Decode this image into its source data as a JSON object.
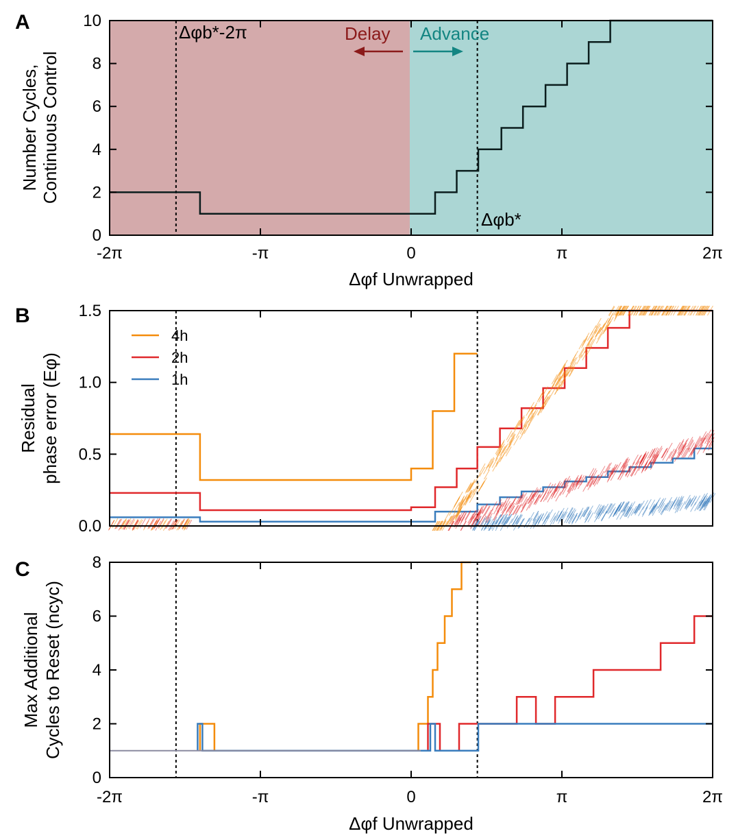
{
  "colors": {
    "delay_region": "#d4aaab",
    "advance_region": "#abd6d4",
    "delay_text": "#8b1a1a",
    "advance_text": "#138582",
    "series_4h": "#f48c0b",
    "series_2h": "#e0282b",
    "series_1h": "#3a7dbd",
    "baseline": "#8a8aa0"
  },
  "chart_data": [
    {
      "panel": "A",
      "type": "line",
      "xlabel": "Δφf Unwrapped",
      "ylabel_lines": [
        "Number Cycles,",
        "Continuous Control"
      ],
      "xlim": [
        -6.2832,
        6.2832
      ],
      "ylim": [
        0,
        10
      ],
      "xticks": [
        "-2π",
        "-π",
        "0",
        "π",
        "2π"
      ],
      "yticks": [
        "0",
        "2",
        "4",
        "6",
        "8",
        "10"
      ],
      "annotations": {
        "delay": "Delay",
        "advance": "Advance",
        "dashed_left": "Δφb*-2π",
        "dashed_right": "Δφb*"
      },
      "dashed_x": [
        -4.9,
        1.38
      ],
      "series": [
        {
          "x": [
            -6.2832,
            -4.4,
            -4.4,
            0.5,
            0.5,
            0.95,
            0.95,
            1.4,
            1.4,
            1.88,
            1.88,
            2.33,
            2.33,
            2.8,
            2.8,
            3.25,
            3.25,
            3.7,
            3.7,
            4.15,
            4.15,
            6.2832
          ],
          "y": [
            2,
            2,
            1,
            1,
            2,
            2,
            3,
            3,
            4,
            4,
            5,
            5,
            6,
            6,
            7,
            7,
            8,
            8,
            9,
            9,
            10,
            10
          ]
        }
      ]
    },
    {
      "panel": "B",
      "type": "line",
      "ylabel_lines": [
        "Residual",
        "phase error (Eφ)"
      ],
      "xlim": [
        -6.2832,
        6.2832
      ],
      "ylim": [
        0,
        1.5
      ],
      "yticks": [
        "0.0",
        "0.5",
        "1.0",
        "1.5"
      ],
      "legend": [
        "4h",
        "2h",
        "1h"
      ],
      "dashed_x": [
        -4.9,
        1.38
      ],
      "series": [
        {
          "name": "4h",
          "x": [
            -6.2832,
            -4.4,
            -4.4,
            0,
            0,
            0.45,
            0.45,
            0.9,
            0.9,
            1.38
          ],
          "y": [
            0.64,
            0.64,
            0.32,
            0.32,
            0.4,
            0.4,
            0.8,
            0.8,
            1.2,
            1.2
          ]
        },
        {
          "name": "2h",
          "x": [
            -6.2832,
            -4.4,
            -4.4,
            0,
            0,
            0.5,
            0.5,
            0.95,
            0.95,
            1.38,
            1.38,
            1.85,
            1.85,
            2.3,
            2.3,
            2.75,
            2.75,
            3.2,
            3.2,
            3.65,
            3.65,
            4.1,
            4.1,
            4.55,
            4.55,
            5.0,
            5.0,
            6.2832
          ],
          "y": [
            0.23,
            0.23,
            0.11,
            0.11,
            0.13,
            0.13,
            0.27,
            0.27,
            0.4,
            0.4,
            0.55,
            0.55,
            0.68,
            0.68,
            0.82,
            0.82,
            0.96,
            0.96,
            1.1,
            1.1,
            1.24,
            1.24,
            1.38,
            1.38,
            1.5,
            1.5,
            1.5,
            1.5
          ]
        },
        {
          "name": "1h",
          "x": [
            -6.2832,
            -4.4,
            -4.4,
            0.5,
            0.5,
            1.38,
            1.38,
            1.85,
            1.85,
            2.3,
            2.3,
            2.75,
            2.75,
            3.2,
            3.2,
            3.65,
            3.65,
            4.1,
            4.1,
            4.55,
            4.55,
            5.0,
            5.0,
            5.45,
            5.45,
            5.9,
            5.9,
            6.2832
          ],
          "y": [
            0.06,
            0.06,
            0.03,
            0.03,
            0.1,
            0.1,
            0.15,
            0.15,
            0.2,
            0.2,
            0.24,
            0.24,
            0.27,
            0.27,
            0.31,
            0.31,
            0.34,
            0.34,
            0.38,
            0.38,
            0.41,
            0.41,
            0.44,
            0.44,
            0.47,
            0.47,
            0.54,
            0.54
          ]
        }
      ]
    },
    {
      "panel": "C",
      "type": "line",
      "xlabel": "Δφf Unwrapped",
      "ylabel_lines": [
        "Max Additional",
        "Cycles to Reset (ncyc)"
      ],
      "xlim": [
        -6.2832,
        6.2832
      ],
      "ylim": [
        0,
        8
      ],
      "xticks": [
        "-2π",
        "-π",
        "0",
        "π",
        "2π"
      ],
      "yticks": [
        "0",
        "2",
        "4",
        "6",
        "8"
      ],
      "dashed_x": [
        -4.9,
        1.38
      ],
      "series": [
        {
          "name": "4h",
          "x": [
            -4.4,
            -4.4,
            -4.1,
            -4.1,
            0.15,
            0.15,
            0.35,
            0.35,
            0.45,
            0.45,
            0.55,
            0.55,
            0.7,
            0.7,
            0.85,
            0.85,
            1.05,
            1.05,
            1.25,
            1.25
          ],
          "y": [
            1,
            2,
            2,
            1,
            1,
            2,
            2,
            3,
            3,
            4,
            4,
            5,
            5,
            6,
            6,
            7,
            7,
            8,
            8,
            8
          ]
        },
        {
          "name": "2h",
          "x": [
            0.35,
            0.35,
            0.6,
            0.6,
            1.0,
            1.0,
            1.4,
            1.4,
            2.2,
            2.2,
            2.6,
            2.6,
            3.0,
            3.0,
            3.8,
            3.8,
            4.3,
            4.3,
            5.2,
            5.2,
            5.9,
            5.9,
            6.2832
          ],
          "y": [
            1,
            2,
            2,
            1,
            1,
            2,
            2,
            2,
            2,
            3,
            3,
            2,
            2,
            3,
            3,
            4,
            4,
            4,
            4,
            5,
            5,
            6,
            6
          ]
        },
        {
          "name": "1h",
          "x": [
            -4.45,
            -4.45,
            -4.35,
            -4.35,
            0.4,
            0.4,
            0.5,
            0.5,
            1.4,
            1.4,
            6.2832
          ],
          "y": [
            1,
            2,
            2,
            1,
            1,
            2,
            2,
            1,
            1,
            2,
            2
          ]
        },
        {
          "name": "baseline",
          "x": [
            -6.2832,
            0.2
          ],
          "y": [
            1,
            1
          ]
        }
      ]
    }
  ],
  "panel_letters": [
    "A",
    "B",
    "C"
  ]
}
